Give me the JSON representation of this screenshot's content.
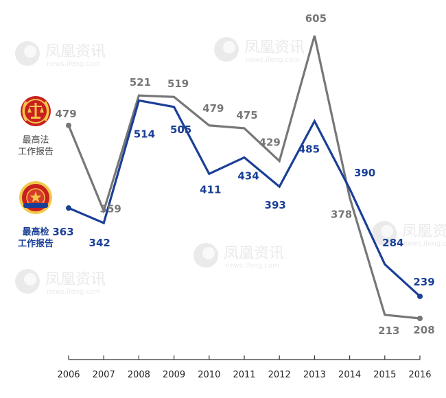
{
  "chart_data": {
    "type": "line",
    "x": [
      "2006",
      "2007",
      "2008",
      "2009",
      "2010",
      "2011",
      "2012",
      "2013",
      "2014",
      "2015",
      "2016"
    ],
    "series": [
      {
        "name": "最高法工作报告",
        "color": "#777777",
        "values": [
          479,
          359,
          521,
          519,
          479,
          475,
          429,
          605,
          378,
          213,
          208
        ]
      },
      {
        "name": "最高检工作报告",
        "color": "#1a3f96",
        "values": [
          363,
          342,
          514,
          505,
          411,
          434,
          393,
          485,
          390,
          284,
          239
        ]
      }
    ],
    "grid": false,
    "legend_placement": "left"
  },
  "legend": {
    "court_line1": "最高法",
    "court_line2": "工作报告",
    "procuratorate_line1": "最高检",
    "procuratorate_line2": "工作报告"
  },
  "watermark": {
    "text_cn": "凤凰资讯",
    "text_en": "news.ifeng.com"
  }
}
